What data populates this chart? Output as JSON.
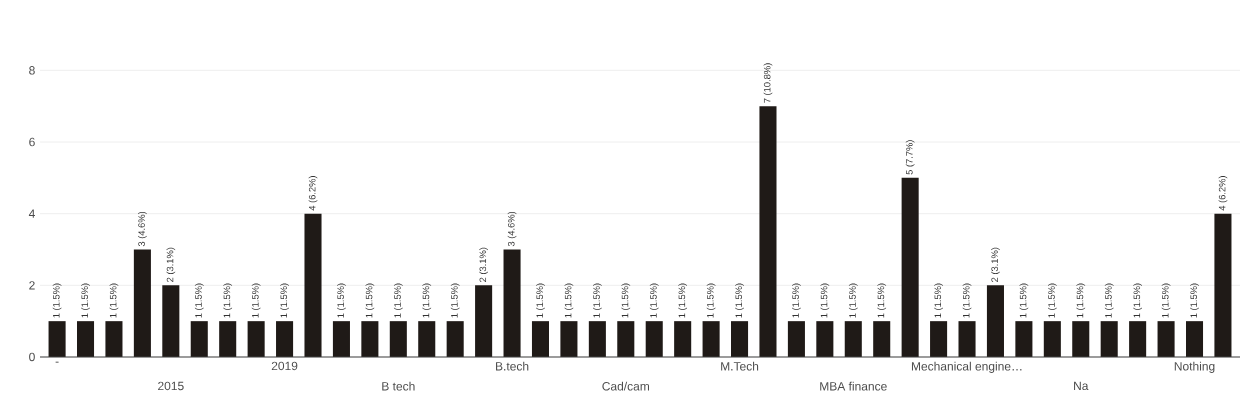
{
  "chart_data": {
    "type": "bar",
    "categories": [
      "-",
      null,
      null,
      null,
      "2015",
      null,
      null,
      null,
      "2019",
      null,
      null,
      null,
      "B tech",
      null,
      null,
      null,
      "B.tech",
      null,
      null,
      null,
      "Cad/cam",
      null,
      null,
      null,
      "M.Tech",
      null,
      null,
      null,
      "MBA finance",
      null,
      null,
      null,
      "Mechanical engine…",
      null,
      null,
      null,
      "Na",
      null,
      null,
      null,
      "Nothing",
      null
    ],
    "values": [
      1,
      1,
      1,
      3,
      2,
      1,
      1,
      1,
      1,
      4,
      1,
      1,
      1,
      1,
      1,
      2,
      3,
      1,
      1,
      1,
      1,
      1,
      1,
      1,
      1,
      7,
      1,
      1,
      1,
      1,
      5,
      1,
      1,
      2,
      1,
      1,
      1,
      1,
      1,
      1,
      1,
      4
    ],
    "value_labels": [
      "1 (1.5%)",
      "1 (1.5%)",
      "1 (1.5%)",
      "3 (4.6%)",
      "2 (3.1%)",
      "1 (1.5%)",
      "1 (1.5%)",
      "1 (1.5%)",
      "1 (1.5%)",
      "4 (6.2%)",
      "1 (1.5%)",
      "1 (1.5%)",
      "1 (1.5%)",
      "1 (1.5%)",
      "1 (1.5%)",
      "2 (3.1%)",
      "3 (4.6%)",
      "1 (1.5%)",
      "1 (1.5%)",
      "1 (1.5%)",
      "1 (1.5%)",
      "1 (1.5%)",
      "1 (1.5%)",
      "1 (1.5%)",
      "1 (1.5%)",
      "7 (10.8%)",
      "1 (1.5%)",
      "1 (1.5%)",
      "1 (1.5%)",
      "1 (1.5%)",
      "5 (7.7%)",
      "1 (1.5%)",
      "1 (1.5%)",
      "2 (3.1%)",
      "1 (1.5%)",
      "1 (1.5%)",
      "1 (1.5%)",
      "1 (1.5%)",
      "1 (1.5%)",
      "1 (1.5%)",
      "1 (1.5%)",
      "4 (6.2%)"
    ],
    "color": "#1f1a17",
    "ylim": [
      0,
      8
    ],
    "yticks": [
      0,
      2,
      4,
      6,
      8
    ],
    "grid": "y"
  }
}
